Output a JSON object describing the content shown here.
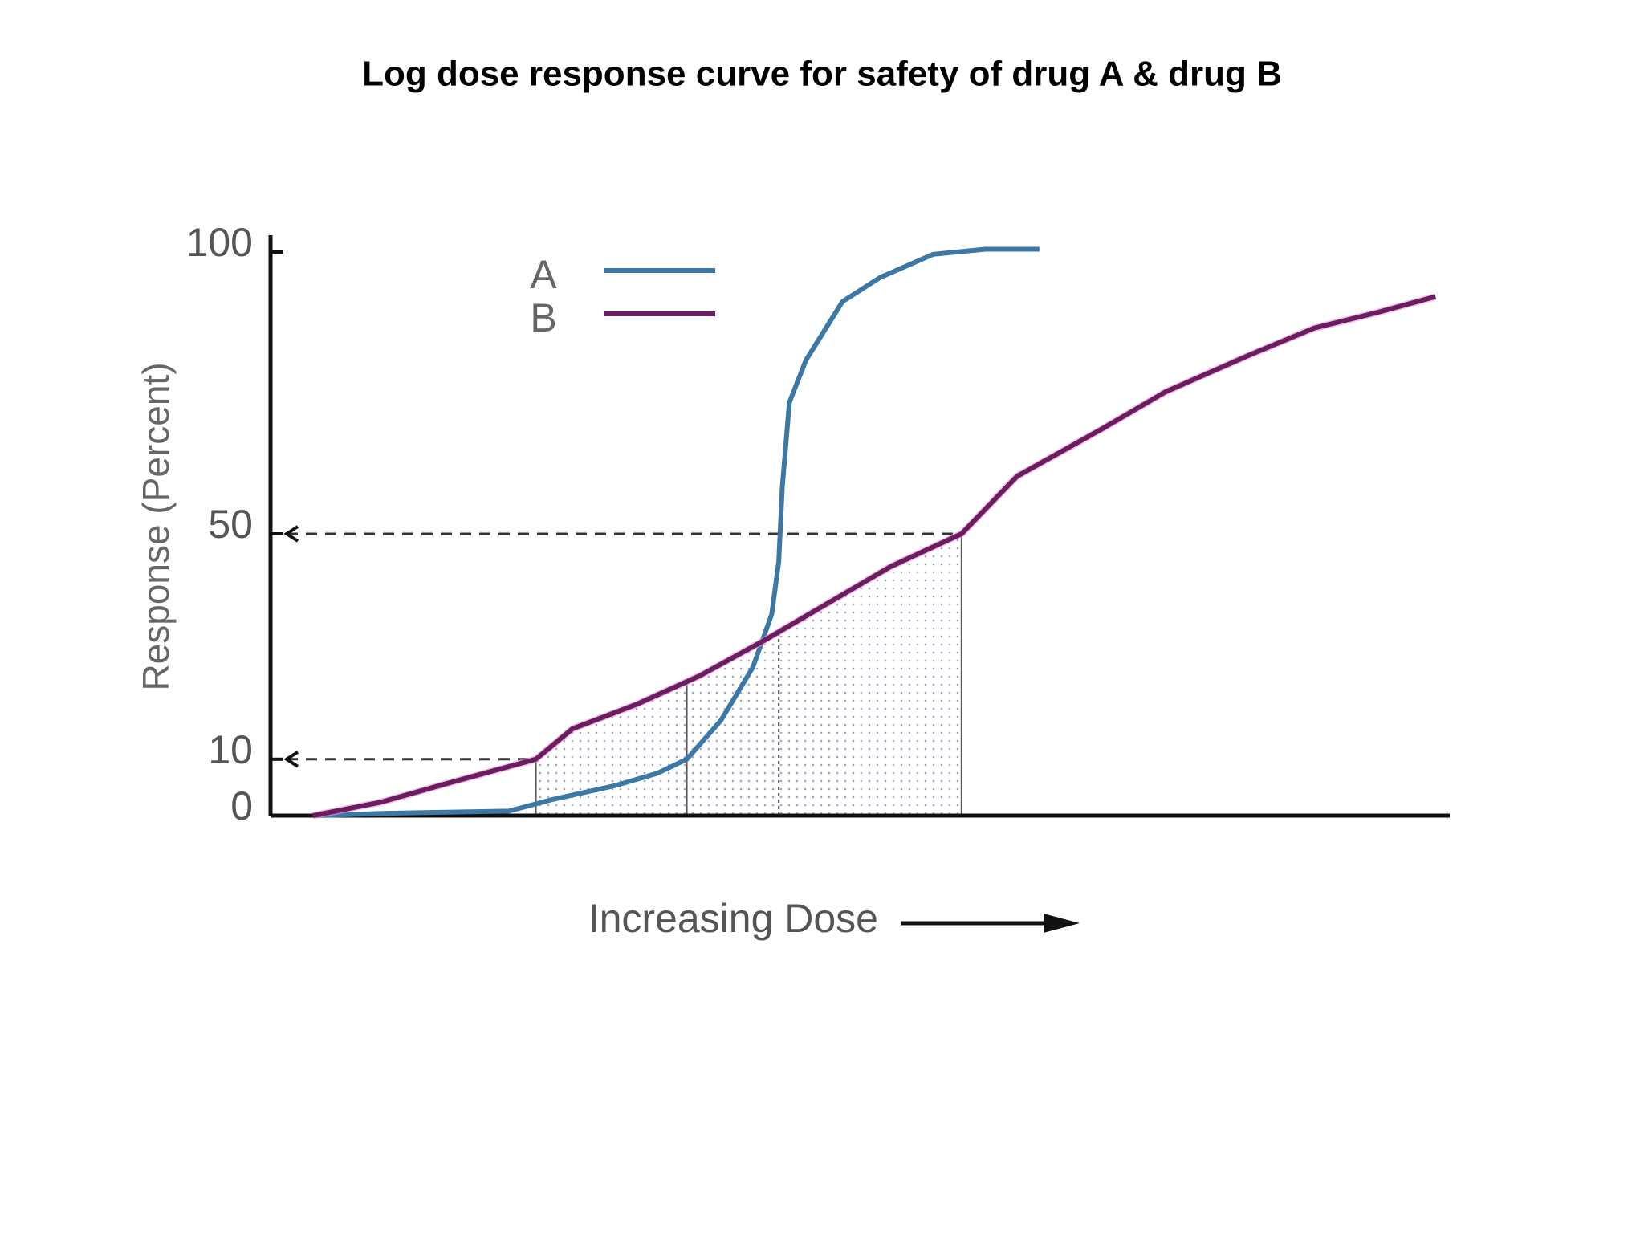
{
  "chart_data": {
    "type": "line",
    "title": "Log dose response curve for safety of drug A & drug B",
    "ylabel": "Response (Percent)",
    "xlabel": "Increasing Dose",
    "ylim": [
      0,
      100
    ],
    "yticks": [
      0,
      10,
      50,
      100
    ],
    "xlim": [
      0,
      100
    ],
    "series": [
      {
        "name": "A",
        "color": "#3b78a6",
        "x": [
          4.0,
          9.4,
          20.2,
          23.8,
          29.2,
          32.8,
          35.3,
          38.2,
          40.9,
          42.5,
          43.1,
          43.4,
          44.0,
          45.4,
          48.5,
          51.7,
          56.2,
          60.6,
          65.2
        ],
        "values": [
          0,
          0.4,
          0.8,
          2.8,
          5.3,
          7.5,
          10,
          16.9,
          26.3,
          35.7,
          45.1,
          58.3,
          73.3,
          80.8,
          91.2,
          95.5,
          99.6,
          100.5,
          100.5
        ]
      },
      {
        "name": "B",
        "color": "#6b1d60",
        "x": [
          3.6,
          9.4,
          14.8,
          22.5,
          25.6,
          31.0,
          36.4,
          41.8,
          47.2,
          52.6,
          58.6,
          63.3,
          70.5,
          75.9,
          83.1,
          88.5,
          93.9,
          98.8
        ],
        "values": [
          0,
          2.4,
          5.6,
          10,
          15.4,
          19.7,
          24.8,
          31.0,
          37.6,
          44.2,
          50,
          60.2,
          68.6,
          75.2,
          81.8,
          86.5,
          89.3,
          92.1
        ]
      }
    ],
    "hlines": [
      {
        "y": 10,
        "x": 22.5
      },
      {
        "y": 50,
        "x": 58.6
      }
    ],
    "vlines": [
      22.5,
      35.3,
      43.1,
      58.6
    ]
  }
}
